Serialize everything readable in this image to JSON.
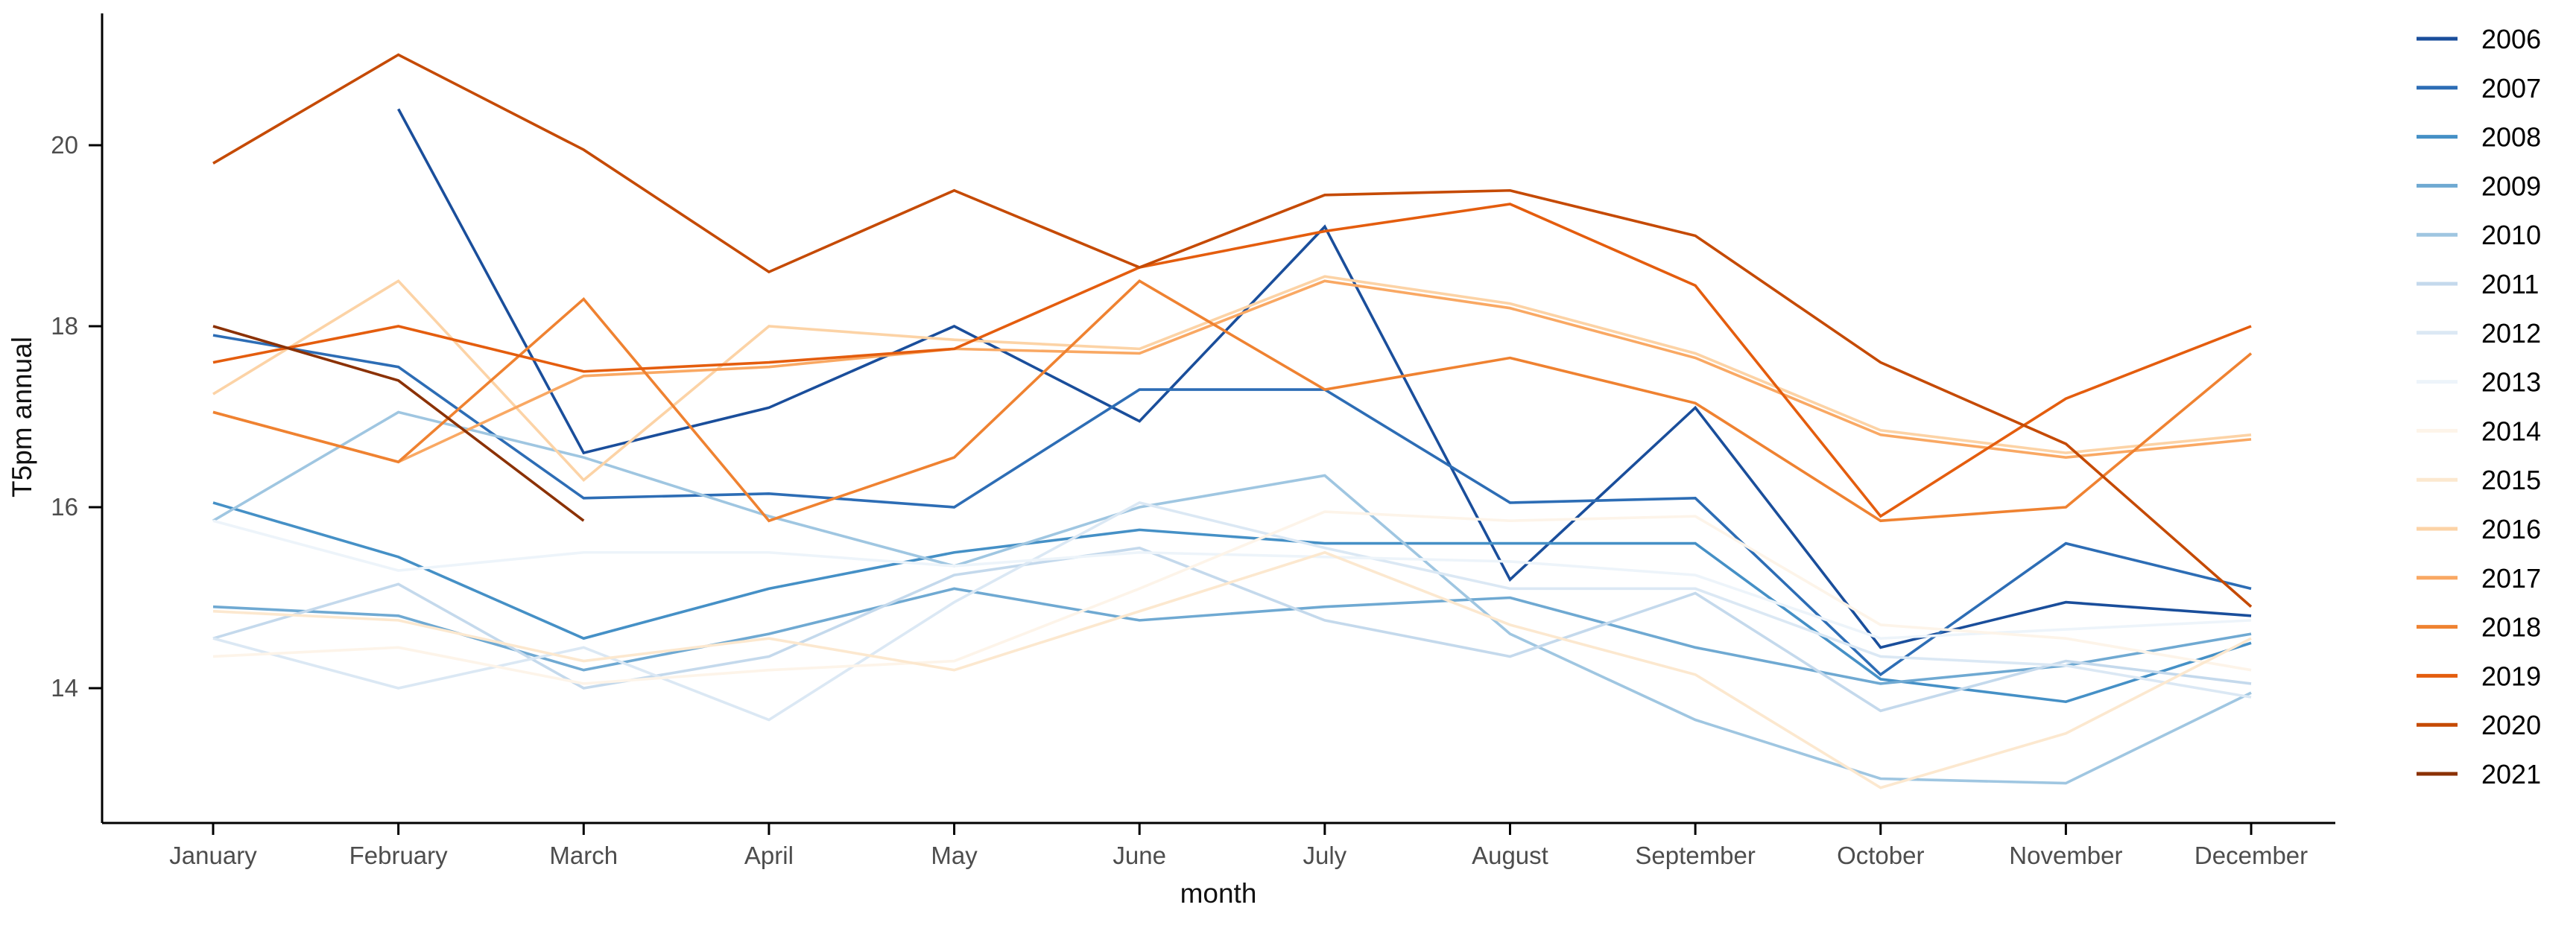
{
  "chart_data": {
    "type": "line",
    "title": "",
    "xlabel": "month",
    "ylabel": "T5pm annual",
    "x_categories": [
      "January",
      "February",
      "March",
      "April",
      "May",
      "June",
      "July",
      "August",
      "September",
      "October",
      "November",
      "December"
    ],
    "y_ticks": [
      14,
      16,
      18,
      20
    ],
    "ylim": [
      12.4,
      21.3
    ],
    "grid": false,
    "legend_position": "right",
    "series": [
      {
        "name": "2006",
        "color": "#1a4e9b",
        "values": [
          null,
          20.4,
          16.6,
          17.1,
          18.0,
          16.95,
          19.1,
          15.2,
          17.1,
          14.45,
          14.95,
          14.8
        ]
      },
      {
        "name": "2007",
        "color": "#2d6db5",
        "values": [
          17.9,
          17.55,
          16.1,
          16.15,
          16.0,
          17.3,
          17.3,
          16.05,
          16.1,
          14.15,
          15.6,
          15.1
        ]
      },
      {
        "name": "2008",
        "color": "#4590c6",
        "values": [
          16.05,
          15.45,
          14.55,
          15.1,
          15.5,
          15.75,
          15.6,
          15.6,
          15.6,
          14.1,
          13.85,
          14.5
        ]
      },
      {
        "name": "2009",
        "color": "#6fa9d2",
        "values": [
          14.9,
          14.8,
          14.2,
          14.6,
          15.1,
          14.75,
          14.9,
          15.0,
          14.45,
          14.05,
          14.25,
          14.6
        ]
      },
      {
        "name": "2010",
        "color": "#9fc6e1",
        "values": [
          15.85,
          17.05,
          16.55,
          15.9,
          15.35,
          16.0,
          16.35,
          14.6,
          13.65,
          13.0,
          12.95,
          13.95
        ]
      },
      {
        "name": "2011",
        "color": "#c4d9ec",
        "values": [
          14.55,
          15.15,
          14.0,
          14.35,
          15.25,
          15.55,
          14.75,
          14.35,
          15.05,
          13.75,
          14.3,
          14.05
        ]
      },
      {
        "name": "2012",
        "color": "#dbe8f4",
        "values": [
          14.55,
          14.0,
          14.45,
          13.65,
          14.95,
          16.05,
          15.55,
          15.1,
          15.1,
          14.35,
          14.25,
          13.9
        ]
      },
      {
        "name": "2013",
        "color": "#edf4fa",
        "values": [
          15.85,
          15.3,
          15.5,
          15.5,
          15.35,
          15.5,
          15.45,
          15.4,
          15.25,
          14.55,
          14.65,
          14.75
        ]
      },
      {
        "name": "2014",
        "color": "#fdf4e9",
        "values": [
          14.35,
          14.45,
          14.05,
          14.2,
          14.3,
          15.1,
          15.95,
          15.85,
          15.9,
          14.7,
          14.55,
          14.2
        ]
      },
      {
        "name": "2015",
        "color": "#fce8cf",
        "values": [
          14.85,
          14.75,
          14.3,
          14.55,
          14.2,
          14.85,
          15.5,
          14.7,
          14.15,
          12.9,
          13.5,
          14.55
        ]
      },
      {
        "name": "2016",
        "color": "#fcd3a6",
        "values": [
          17.25,
          18.5,
          16.3,
          18.0,
          17.85,
          17.75,
          18.55,
          18.25,
          17.7,
          16.85,
          16.6,
          16.8
        ]
      },
      {
        "name": "2017",
        "color": "#f9a863",
        "values": [
          17.05,
          16.5,
          17.45,
          17.55,
          17.75,
          17.7,
          18.5,
          18.2,
          17.65,
          16.8,
          16.55,
          16.75
        ]
      },
      {
        "name": "2018",
        "color": "#ef8231",
        "values": [
          17.05,
          16.5,
          18.3,
          15.85,
          16.55,
          18.5,
          17.3,
          17.65,
          17.15,
          15.85,
          16.0,
          17.7
        ]
      },
      {
        "name": "2019",
        "color": "#e45d0e",
        "values": [
          17.6,
          18.0,
          17.5,
          17.6,
          17.75,
          18.65,
          19.05,
          19.35,
          18.45,
          15.9,
          17.2,
          18.0
        ]
      },
      {
        "name": "2020",
        "color": "#c54a04",
        "values": [
          19.8,
          21.0,
          19.95,
          18.6,
          19.5,
          18.65,
          19.45,
          19.5,
          19.0,
          17.6,
          16.7,
          14.9
        ]
      },
      {
        "name": "2021",
        "color": "#8b3104",
        "values": [
          18.0,
          17.4,
          15.85,
          null,
          null,
          null,
          null,
          null,
          null,
          null,
          null,
          null
        ]
      }
    ]
  }
}
